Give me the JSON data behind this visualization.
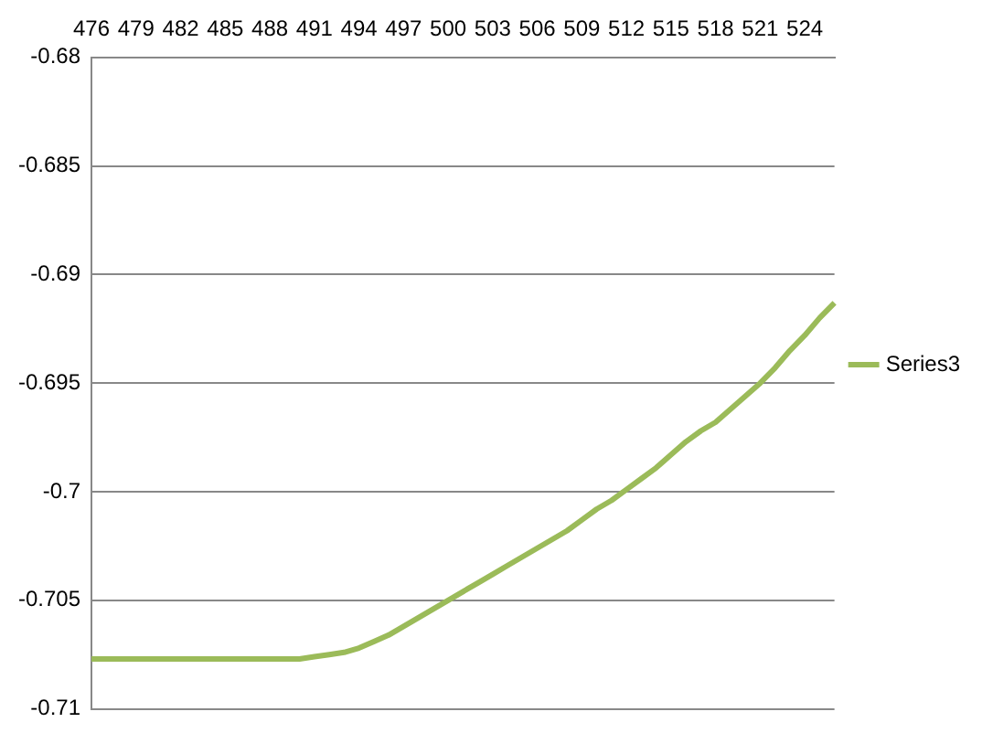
{
  "chart_data": {
    "type": "line",
    "categories": [
      "476",
      null,
      null,
      "479",
      null,
      null,
      "482",
      null,
      null,
      "485",
      null,
      null,
      "488",
      null,
      null,
      "491",
      null,
      null,
      "494",
      null,
      null,
      "497",
      null,
      null,
      "500",
      null,
      null,
      "503",
      null,
      null,
      "506",
      null,
      null,
      "509",
      null,
      null,
      "512",
      null,
      null,
      "515",
      null,
      null,
      "518",
      null,
      null,
      "521",
      null,
      null,
      "524",
      null,
      null
    ],
    "series": [
      {
        "name": "Series3",
        "color": "#9bbb59",
        "values": [
          -0.7077,
          -0.7077,
          -0.7077,
          -0.7077,
          -0.7077,
          -0.7077,
          -0.7077,
          -0.7077,
          -0.7077,
          -0.7077,
          -0.7077,
          -0.7077,
          -0.7077,
          -0.7077,
          -0.7077,
          -0.7076,
          -0.7075,
          -0.7074,
          -0.7072,
          -0.7069,
          -0.7066,
          -0.7062,
          -0.7058,
          -0.7054,
          -0.705,
          -0.7046,
          -0.7042,
          -0.7038,
          -0.7034,
          -0.703,
          -0.7026,
          -0.7022,
          -0.7018,
          -0.7013,
          -0.7008,
          -0.7004,
          -0.6999,
          -0.6994,
          -0.6989,
          -0.6983,
          -0.6977,
          -0.6972,
          -0.6968,
          -0.6962,
          -0.6956,
          -0.695,
          -0.6943,
          -0.6935,
          -0.6928,
          -0.692,
          -0.6913
        ]
      }
    ],
    "ylim": [
      -0.71,
      -0.68
    ],
    "yticks": [
      -0.71,
      -0.705,
      -0.7,
      -0.695,
      -0.69,
      -0.685,
      -0.68
    ],
    "grid": "y",
    "legend": "right",
    "marker": "none",
    "line_style": "solid"
  }
}
